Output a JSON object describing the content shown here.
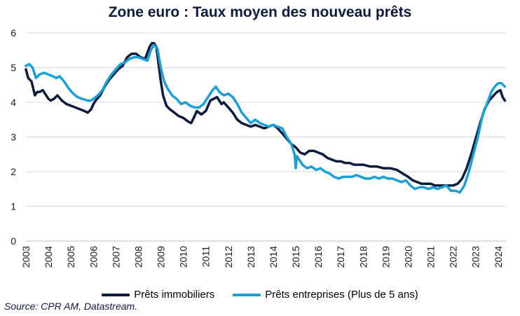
{
  "chart_data": {
    "type": "line",
    "title": "Zone euro : Taux moyen des nouveau prêts",
    "xlabel": "",
    "ylabel": "",
    "xlim": [
      2003,
      2024.35
    ],
    "ylim": [
      0,
      6
    ],
    "yticks": [
      0,
      1,
      2,
      3,
      4,
      5,
      6
    ],
    "xticks": [
      "2003",
      "2004",
      "2005",
      "2006",
      "2007",
      "2008",
      "2009",
      "2010",
      "2011",
      "2012",
      "2013",
      "2014",
      "2015",
      "2016",
      "2017",
      "2018",
      "2019",
      "2020",
      "2021",
      "2022",
      "2023",
      "2024"
    ],
    "grid": true,
    "legend_position": "bottom",
    "series": [
      {
        "name": "Prêts immobiliers",
        "color": "#0d1b3e",
        "x": [
          2003.0,
          2003.1,
          2003.25,
          2003.4,
          2003.5,
          2003.6,
          2003.75,
          2004.0,
          2004.1,
          2004.25,
          2004.4,
          2004.6,
          2004.8,
          2005.0,
          2005.2,
          2005.4,
          2005.6,
          2005.75,
          2005.9,
          2006.0,
          2006.1,
          2006.3,
          2006.5,
          2006.7,
          2006.9,
          2007.1,
          2007.3,
          2007.5,
          2007.7,
          2007.9,
          2008.1,
          2008.3,
          2008.5,
          2008.6,
          2008.7,
          2008.8,
          2008.9,
          2009.0,
          2009.1,
          2009.25,
          2009.4,
          2009.6,
          2009.8,
          2010.0,
          2010.2,
          2010.35,
          2010.5,
          2010.6,
          2010.8,
          2011.0,
          2011.2,
          2011.35,
          2011.5,
          2011.7,
          2011.8,
          2012.0,
          2012.2,
          2012.4,
          2012.6,
          2012.8,
          2013.0,
          2013.2,
          2013.4,
          2013.6,
          2013.8,
          2014.0,
          2014.2,
          2014.4,
          2014.6,
          2014.8,
          2015.0,
          2015.2,
          2015.4,
          2015.6,
          2015.8,
          2016.0,
          2016.2,
          2016.4,
          2016.6,
          2016.8,
          2017.0,
          2017.2,
          2017.4,
          2017.6,
          2017.8,
          2018.0,
          2018.3,
          2018.6,
          2018.9,
          2019.2,
          2019.5,
          2019.75,
          2020.0,
          2020.2,
          2020.4,
          2020.6,
          2020.8,
          2021.0,
          2021.2,
          2021.4,
          2021.6,
          2021.8,
          2022.0,
          2022.2,
          2022.4,
          2022.6,
          2022.8,
          2023.0,
          2023.2,
          2023.4,
          2023.6,
          2023.8,
          2023.95,
          2024.1,
          2024.2,
          2024.3
        ],
        "values": [
          4.95,
          4.7,
          4.6,
          4.2,
          4.3,
          4.3,
          4.35,
          4.1,
          4.05,
          4.1,
          4.2,
          4.05,
          3.95,
          3.9,
          3.85,
          3.8,
          3.75,
          3.7,
          3.8,
          3.95,
          4.05,
          4.2,
          4.45,
          4.65,
          4.8,
          4.95,
          5.05,
          5.3,
          5.4,
          5.4,
          5.3,
          5.25,
          5.6,
          5.7,
          5.7,
          5.6,
          5.1,
          4.6,
          4.2,
          3.9,
          3.8,
          3.7,
          3.6,
          3.55,
          3.45,
          3.4,
          3.6,
          3.75,
          3.65,
          3.75,
          4.05,
          4.1,
          4.15,
          3.95,
          4.0,
          3.85,
          3.7,
          3.5,
          3.4,
          3.35,
          3.3,
          3.35,
          3.3,
          3.25,
          3.3,
          3.35,
          3.25,
          3.1,
          2.95,
          2.8,
          2.7,
          2.55,
          2.5,
          2.6,
          2.6,
          2.55,
          2.5,
          2.4,
          2.35,
          2.3,
          2.3,
          2.25,
          2.25,
          2.2,
          2.2,
          2.2,
          2.15,
          2.15,
          2.1,
          2.1,
          2.05,
          1.95,
          1.85,
          1.75,
          1.7,
          1.65,
          1.65,
          1.65,
          1.6,
          1.6,
          1.6,
          1.6,
          1.6,
          1.65,
          1.8,
          2.1,
          2.5,
          2.95,
          3.4,
          3.8,
          4.05,
          4.2,
          4.3,
          4.35,
          4.15,
          4.05
        ]
      },
      {
        "name": "Prêts entreprises (Plus de 5 ans)",
        "color": "#1a9fd6",
        "x": [
          2003.0,
          2003.15,
          2003.3,
          2003.45,
          2003.6,
          2003.8,
          2004.0,
          2004.2,
          2004.35,
          2004.5,
          2004.7,
          2004.9,
          2005.1,
          2005.3,
          2005.5,
          2005.75,
          2005.9,
          2006.0,
          2006.2,
          2006.4,
          2006.6,
          2006.8,
          2007.0,
          2007.2,
          2007.4,
          2007.6,
          2007.8,
          2008.0,
          2008.2,
          2008.4,
          2008.55,
          2008.7,
          2008.85,
          2009.0,
          2009.15,
          2009.3,
          2009.5,
          2009.7,
          2009.9,
          2010.1,
          2010.3,
          2010.5,
          2010.7,
          2010.9,
          2011.1,
          2011.3,
          2011.45,
          2011.6,
          2011.8,
          2012.0,
          2012.2,
          2012.4,
          2012.6,
          2012.8,
          2013.0,
          2013.2,
          2013.4,
          2013.6,
          2013.8,
          2014.0,
          2014.2,
          2014.4,
          2014.6,
          2014.8,
          2014.95,
          2015.0,
          2015.05,
          2015.15,
          2015.3,
          2015.5,
          2015.7,
          2015.9,
          2016.1,
          2016.3,
          2016.5,
          2016.7,
          2016.9,
          2017.1,
          2017.3,
          2017.5,
          2017.7,
          2017.9,
          2018.1,
          2018.3,
          2018.5,
          2018.7,
          2018.9,
          2019.1,
          2019.3,
          2019.5,
          2019.7,
          2019.9,
          2020.1,
          2020.3,
          2020.5,
          2020.7,
          2020.9,
          2021.1,
          2021.3,
          2021.5,
          2021.7,
          2021.9,
          2022.1,
          2022.3,
          2022.5,
          2022.7,
          2022.9,
          2023.1,
          2023.3,
          2023.5,
          2023.7,
          2023.85,
          2024.0,
          2024.15,
          2024.3
        ],
        "values": [
          5.05,
          5.1,
          5.0,
          4.7,
          4.8,
          4.85,
          4.8,
          4.75,
          4.7,
          4.75,
          4.6,
          4.4,
          4.25,
          4.15,
          4.1,
          4.05,
          4.05,
          4.1,
          4.2,
          4.35,
          4.6,
          4.8,
          4.95,
          5.1,
          5.15,
          5.25,
          5.3,
          5.3,
          5.25,
          5.2,
          5.5,
          5.65,
          5.55,
          5.0,
          4.6,
          4.4,
          4.2,
          4.1,
          3.95,
          4.0,
          3.9,
          3.85,
          3.85,
          3.95,
          4.15,
          4.35,
          4.45,
          4.3,
          4.2,
          4.25,
          4.15,
          3.95,
          3.7,
          3.55,
          3.4,
          3.5,
          3.4,
          3.35,
          3.3,
          3.35,
          3.3,
          3.25,
          3.0,
          2.8,
          2.5,
          2.1,
          2.45,
          2.35,
          2.2,
          2.1,
          2.15,
          2.05,
          2.1,
          2.0,
          1.95,
          1.85,
          1.8,
          1.85,
          1.85,
          1.85,
          1.9,
          1.85,
          1.8,
          1.8,
          1.85,
          1.8,
          1.85,
          1.8,
          1.8,
          1.75,
          1.7,
          1.75,
          1.6,
          1.5,
          1.55,
          1.55,
          1.5,
          1.55,
          1.5,
          1.55,
          1.6,
          1.45,
          1.45,
          1.4,
          1.6,
          2.0,
          2.5,
          3.0,
          3.6,
          3.95,
          4.3,
          4.45,
          4.55,
          4.55,
          4.45
        ]
      }
    ]
  },
  "source": "Source: CPR AM, Datastream."
}
